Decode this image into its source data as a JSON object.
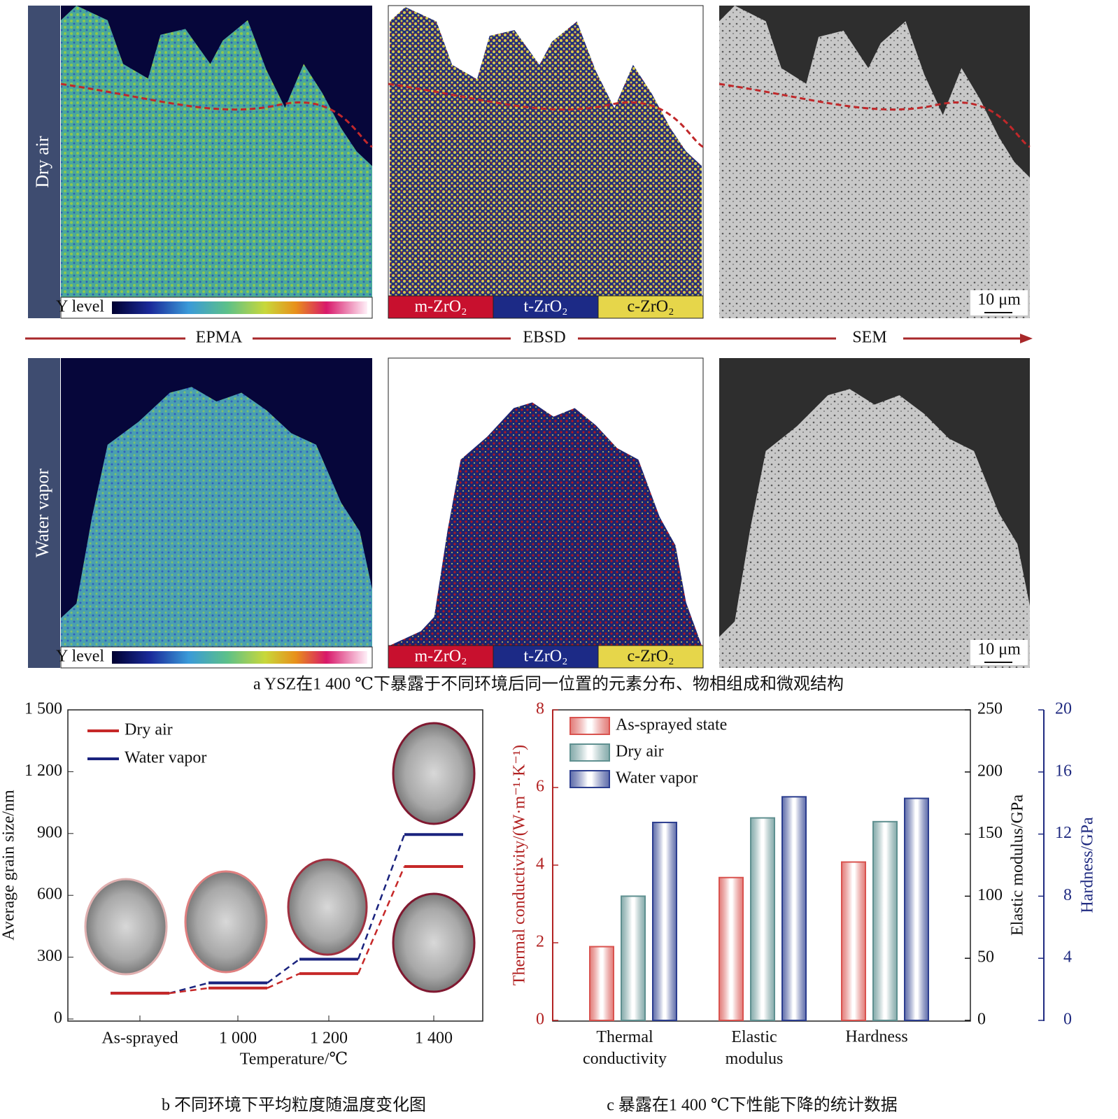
{
  "panel_a": {
    "rows": [
      "Dry air",
      "Water vapor"
    ],
    "techniques": [
      "EPMA",
      "EBSD",
      "SEM"
    ],
    "colorbar_label": "Y level",
    "phases": [
      "m-ZrO₂",
      "t-ZrO₂",
      "c-ZrO₂"
    ],
    "phase_colors": [
      "#c8102e",
      "#1c2a86",
      "#e6d64a"
    ],
    "scale_bar": "10 μm",
    "caption": "a YSZ在1 400 ℃下暴露于不同环境后同一位置的元素分布、物相组成和微观结构"
  },
  "chart_data": [
    {
      "type": "line",
      "caption": "b 不同环境下平均粒度随温度变化图",
      "xlabel": "Temperature/℃",
      "ylabel": "Average grain size/nm",
      "categories": [
        "As-sprayed",
        "1 000",
        "1 200",
        "1 400"
      ],
      "series": [
        {
          "name": "Dry air",
          "color": "#c62828",
          "values": [
            125,
            150,
            220,
            740
          ]
        },
        {
          "name": "Water vapor",
          "color": "#1a237e",
          "values": [
            125,
            175,
            290,
            895
          ]
        }
      ],
      "ylim": [
        0,
        1500
      ],
      "yticks": [
        0,
        300,
        600,
        900,
        {
          "value": 1200,
          "label": "1 200"
        },
        {
          "value": 1500,
          "label": "1 500"
        }
      ],
      "legend": "upper left"
    },
    {
      "type": "bar",
      "caption": "c 暴露在1 400 ℃下性能下降的统计数据",
      "categories": [
        "Thermal conductivity",
        "Elastic modulus",
        "Hardness"
      ],
      "category_axis": [
        "y",
        "y2",
        "y3"
      ],
      "series": [
        {
          "name": "As-sprayed state",
          "color": "#d9534f",
          "values": [
            1.9,
            115,
            10.2
          ]
        },
        {
          "name": "Dry air",
          "color": "#5f9090",
          "values": [
            3.2,
            163,
            12.8
          ]
        },
        {
          "name": "Water vapor",
          "color": "#2c3e8f",
          "values": [
            5.1,
            180,
            14.3
          ]
        }
      ],
      "ylabel": "Thermal conductivity/(W·m⁻¹·K⁻¹)",
      "ylim": [
        0,
        8
      ],
      "yticks": [
        0,
        2,
        4,
        6,
        8
      ],
      "ycolor": "#b22222",
      "y2label": "Elastic modulus/GPa",
      "y2lim": [
        0,
        250
      ],
      "y2ticks": [
        0,
        50,
        100,
        150,
        200,
        250
      ],
      "y2color": "#111111",
      "y3label": "Hardness/GPa",
      "y3lim": [
        0,
        20
      ],
      "y3ticks": [
        0,
        4,
        8,
        12,
        16,
        20
      ],
      "y3color": "#1f2a80",
      "legend": "upper left"
    }
  ]
}
